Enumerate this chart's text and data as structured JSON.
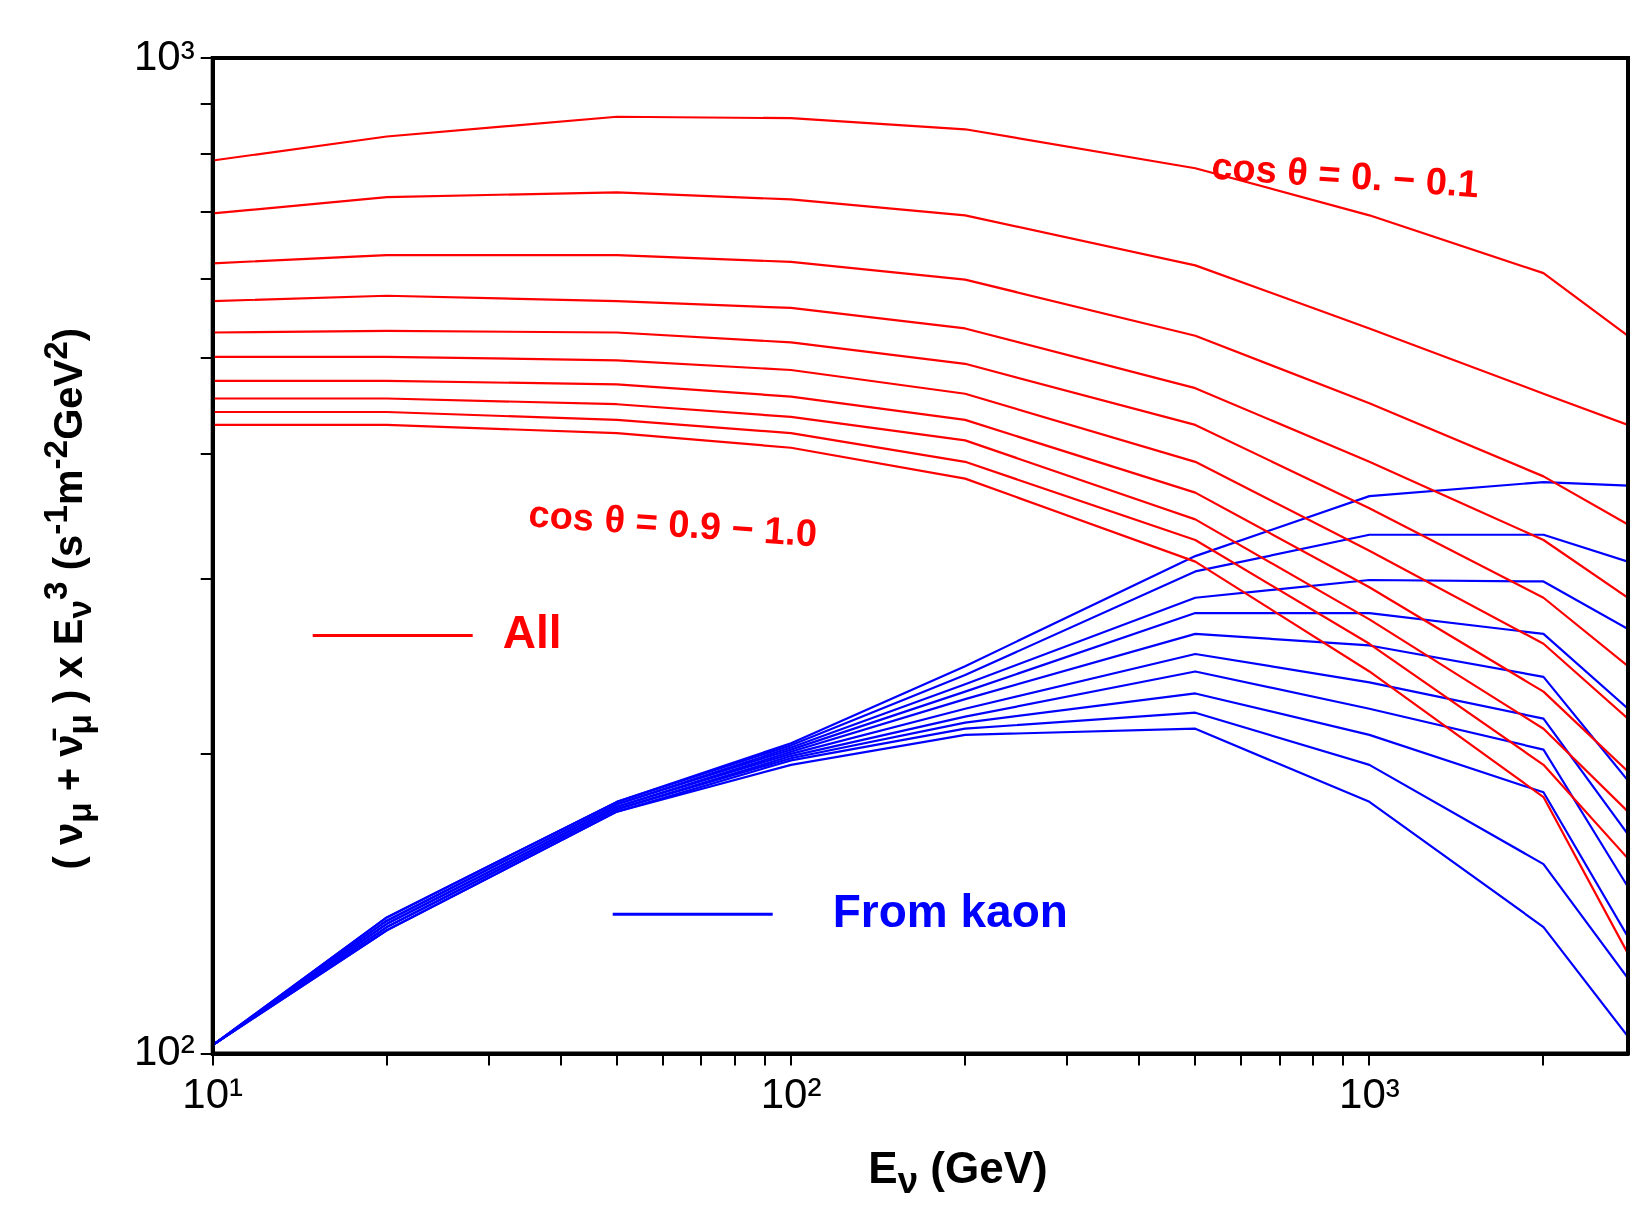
{
  "chart_data": {
    "type": "line",
    "xlabel": "E$_{ν}$ (GeV)",
    "ylabel": "( ν$_{μ}$ + ν̄$_{μ}$ ) x E$_{ν}$$^{3}$ (s$^{-1}$m$^{-2}$GeV$^{2}$)",
    "x": [
      10,
      20,
      50,
      100,
      200,
      500,
      1000,
      2000,
      2800
    ],
    "log": "xy",
    "grid": false,
    "legend": "left",
    "marker": "none",
    "line_style": "solid",
    "xlim": [
      10,
      2800
    ],
    "ylim": [
      100,
      1000
    ],
    "xticks": [
      {
        "value": 10,
        "label": "10¹"
      },
      {
        "value": 20,
        "label": null
      },
      {
        "value": 30,
        "label": null
      },
      {
        "value": 40,
        "label": null
      },
      {
        "value": 50,
        "label": null
      },
      {
        "value": 60,
        "label": null
      },
      {
        "value": 70,
        "label": null
      },
      {
        "value": 80,
        "label": null
      },
      {
        "value": 90,
        "label": null
      },
      {
        "value": 100,
        "label": "10²"
      },
      {
        "value": 200,
        "label": null
      },
      {
        "value": 300,
        "label": null
      },
      {
        "value": 400,
        "label": null
      },
      {
        "value": 500,
        "label": null
      },
      {
        "value": 600,
        "label": null
      },
      {
        "value": 700,
        "label": null
      },
      {
        "value": 800,
        "label": null
      },
      {
        "value": 900,
        "label": null
      },
      {
        "value": 1000,
        "label": "10³"
      },
      {
        "value": 2000,
        "label": null
      }
    ],
    "yticks": [
      {
        "value": 100,
        "label": "10²"
      },
      {
        "value": 200,
        "label": null
      },
      {
        "value": 300,
        "label": null
      },
      {
        "value": 400,
        "label": null
      },
      {
        "value": 500,
        "label": null
      },
      {
        "value": 600,
        "label": null
      },
      {
        "value": 700,
        "label": null
      },
      {
        "value": 800,
        "label": null
      },
      {
        "value": 900,
        "label": null
      },
      {
        "value": 1000,
        "label": "10³"
      }
    ],
    "annotations": [
      "cos θ = 0. − 0.1",
      "cos θ = 0.9 − 1.0"
    ],
    "series": [
      {
        "name": "All",
        "color": "#ff0000",
        "values": [
          789,
          834,
          873,
          870,
          848,
          775,
          695,
          608,
          526
        ]
      },
      {
        "color": "#ff0000",
        "values": [
          698,
          725,
          733,
          721,
          695,
          619,
          535,
          460,
          428
        ]
      },
      {
        "color": "#ff0000",
        "values": [
          622,
          634,
          634,
          624,
          599,
          526,
          450,
          380,
          340
        ]
      },
      {
        "color": "#ff0000",
        "values": [
          570,
          577,
          570,
          561,
          535,
          466,
          393,
          328,
          287
        ]
      },
      {
        "color": "#ff0000",
        "values": [
          530,
          532,
          530,
          518,
          493,
          428,
          353,
          287,
          245
        ]
      },
      {
        "color": "#ff0000",
        "values": [
          501,
          501,
          497,
          486,
          460,
          393,
          320,
          258,
          217
        ]
      },
      {
        "color": "#ff0000",
        "values": [
          474,
          474,
          470,
          457,
          433,
          366,
          294,
          231,
          192
        ]
      },
      {
        "color": "#ff0000",
        "values": [
          455,
          455,
          449,
          436,
          413,
          344,
          273,
          212,
          175
        ]
      },
      {
        "color": "#ff0000",
        "values": [
          441,
          441,
          433,
          420,
          393,
          328,
          258,
          195,
          157
        ]
      },
      {
        "color": "#ff0000",
        "values": [
          428,
          428,
          420,
          406,
          378,
          312,
          242,
          181,
          126
        ]
      },
      {
        "name": "From kaon",
        "color": "#0000ff",
        "values": [
          102,
          137,
          179,
          205,
          245,
          316,
          363,
          375,
          372
        ]
      },
      {
        "color": "#0000ff",
        "values": [
          102,
          137,
          179,
          204,
          240,
          305,
          332,
          332,
          312
        ]
      },
      {
        "color": "#0000ff",
        "values": [
          102,
          136,
          178,
          203,
          235,
          287,
          299,
          298,
          267
        ]
      },
      {
        "color": "#0000ff",
        "values": [
          102,
          136,
          178,
          202,
          231,
          277,
          277,
          264,
          222
        ]
      },
      {
        "color": "#0000ff",
        "values": [
          102,
          135,
          177,
          201,
          227,
          264,
          257,
          239,
          188
        ]
      },
      {
        "color": "#0000ff",
        "values": [
          102,
          135,
          177,
          200,
          222,
          252,
          236,
          217,
          166
        ]
      },
      {
        "color": "#0000ff",
        "values": [
          102,
          134,
          176,
          199,
          218,
          242,
          222,
          202,
          147
        ]
      },
      {
        "color": "#0000ff",
        "values": [
          102,
          134,
          176,
          198,
          215,
          230,
          209,
          183,
          131
        ]
      },
      {
        "color": "#0000ff",
        "values": [
          102,
          133,
          175,
          197,
          212,
          220,
          195,
          155,
          119
        ]
      },
      {
        "color": "#0000ff",
        "values": [
          102,
          133,
          175,
          195,
          209,
          212,
          179,
          134,
          104
        ]
      }
    ]
  }
}
